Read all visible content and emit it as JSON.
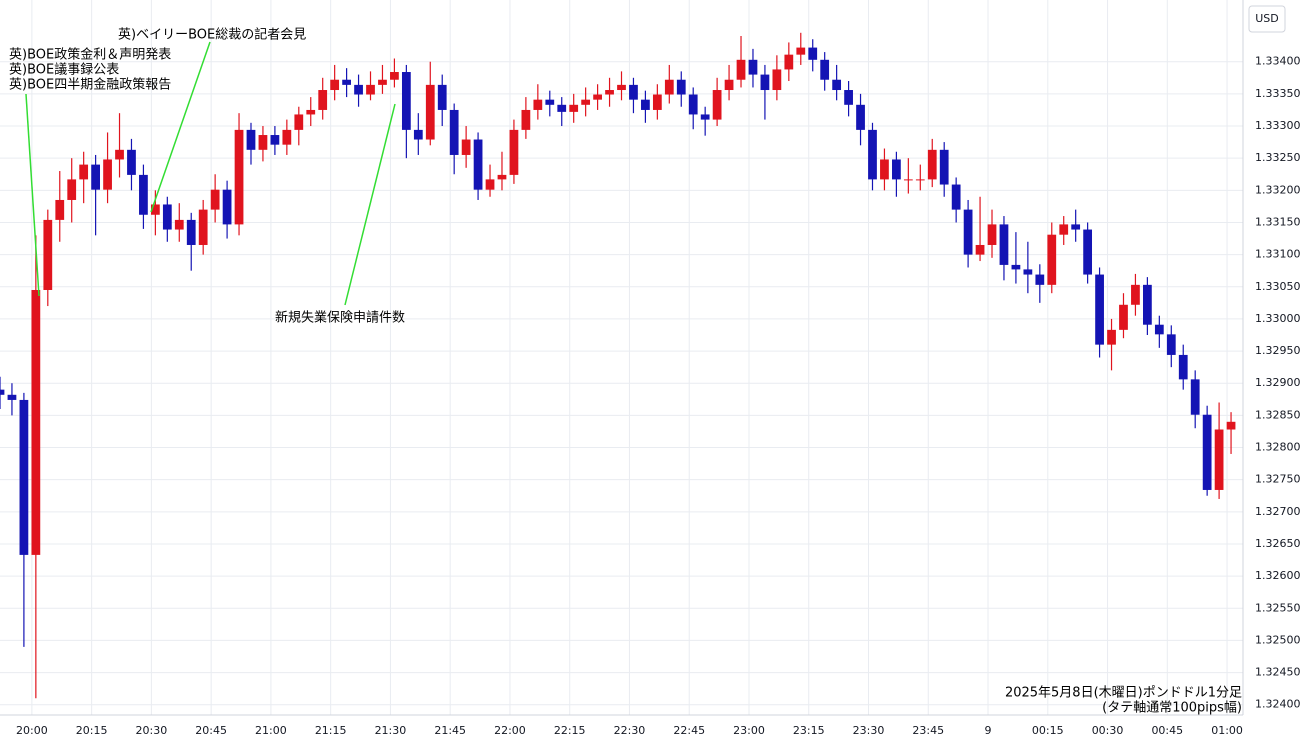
{
  "chart_data": {
    "type": "candlestick",
    "currency": "USD",
    "annotations": [
      "英)ベイリーBOE総裁の記者会見",
      "英)BOE政策金利＆声明発表",
      "英)BOE議事録公表",
      "英)BOE四半期金融政策報告",
      "新規失業保険申請件数"
    ],
    "caption": [
      "2025年5月8日(木曜日)ポンドドル1分足",
      "(タテ軸通常100pips幅)"
    ],
    "up_color": "#e0141e",
    "down_color": "#1414b4",
    "grid": true,
    "x": [
      "19:52",
      "19:55",
      "19:58",
      "20:01",
      "20:04",
      "20:07",
      "20:10",
      "20:13",
      "20:16",
      "20:19",
      "20:22",
      "20:25",
      "20:28",
      "20:31",
      "20:34",
      "20:37",
      "20:40",
      "20:43",
      "20:46",
      "20:49",
      "20:52",
      "20:55",
      "20:58",
      "21:01",
      "21:04",
      "21:07",
      "21:10",
      "21:13",
      "21:16",
      "21:19",
      "21:22",
      "21:25",
      "21:28",
      "21:31",
      "21:34",
      "21:37",
      "21:40",
      "21:43",
      "21:46",
      "21:49",
      "21:52",
      "21:55",
      "21:58",
      "22:01",
      "22:04",
      "22:07",
      "22:10",
      "22:13",
      "22:16",
      "22:19",
      "22:22",
      "22:25",
      "22:28",
      "22:31",
      "22:34",
      "22:37",
      "22:40",
      "22:43",
      "22:46",
      "22:49",
      "22:52",
      "22:55",
      "22:58",
      "23:01",
      "23:04",
      "23:07",
      "23:10",
      "23:13",
      "23:16",
      "23:19",
      "23:22",
      "23:25",
      "23:28",
      "23:31",
      "23:34",
      "23:37",
      "23:40",
      "23:43",
      "23:46",
      "23:49",
      "23:52",
      "23:55",
      "23:58",
      "00:01",
      "00:04",
      "00:07",
      "00:10",
      "00:13",
      "00:16",
      "00:19",
      "00:22",
      "00:25",
      "00:28",
      "00:31",
      "00:34",
      "00:37",
      "00:40",
      "00:43",
      "00:46",
      "00:49",
      "00:52",
      "00:55",
      "00:58",
      "01:01"
    ],
    "open": [
      1.3289,
      1.32882,
      1.32874,
      1.32633,
      1.33045,
      1.33154,
      1.33185,
      1.33217,
      1.3324,
      1.33201,
      1.33248,
      1.33263,
      1.33224,
      1.33162,
      1.33178,
      1.33139,
      1.33154,
      1.33115,
      1.3317,
      1.33201,
      1.33147,
      1.33294,
      1.33263,
      1.33286,
      1.33271,
      1.33294,
      1.33318,
      1.33325,
      1.33356,
      1.33372,
      1.33364,
      1.33349,
      1.33364,
      1.33372,
      1.33384,
      1.33294,
      1.33279,
      1.33364,
      1.33325,
      1.33255,
      1.33279,
      1.33201,
      1.33217,
      1.33224,
      1.33294,
      1.33325,
      1.33341,
      1.33333,
      1.33322,
      1.33333,
      1.33341,
      1.33349,
      1.33356,
      1.33364,
      1.33341,
      1.33325,
      1.33349,
      1.33372,
      1.33349,
      1.33318,
      1.3331,
      1.33356,
      1.33372,
      1.33403,
      1.3338,
      1.33356,
      1.33388,
      1.33411,
      1.33422,
      1.33403,
      1.33372,
      1.33356,
      1.33333,
      1.33294,
      1.33217,
      1.33248,
      1.33217,
      1.33217,
      1.33217,
      1.33263,
      1.33209,
      1.3317,
      1.331,
      1.33115,
      1.33147,
      1.33084,
      1.33077,
      1.33069,
      1.33053,
      1.33131,
      1.33147,
      1.33139,
      1.33069,
      1.3296,
      1.32983,
      1.33022,
      1.33053,
      1.32991,
      1.32976,
      1.32944,
      1.32906,
      1.32851,
      1.32734,
      1.32828
    ],
    "high": [
      1.3291,
      1.329,
      1.32885,
      1.3313,
      1.3317,
      1.3323,
      1.3325,
      1.3326,
      1.33255,
      1.3329,
      1.3332,
      1.3328,
      1.3324,
      1.332,
      1.3319,
      1.3318,
      1.33165,
      1.33185,
      1.33225,
      1.33215,
      1.3332,
      1.33305,
      1.333,
      1.333,
      1.3331,
      1.3333,
      1.33345,
      1.33375,
      1.33395,
      1.3339,
      1.3338,
      1.33385,
      1.33395,
      1.33405,
      1.33395,
      1.3332,
      1.334,
      1.3338,
      1.33335,
      1.333,
      1.3329,
      1.3324,
      1.3326,
      1.3331,
      1.33345,
      1.33365,
      1.33355,
      1.33345,
      1.3335,
      1.3336,
      1.33365,
      1.33375,
      1.33385,
      1.33375,
      1.33355,
      1.33365,
      1.33395,
      1.33385,
      1.3336,
      1.3333,
      1.33375,
      1.33395,
      1.3344,
      1.3342,
      1.33395,
      1.3341,
      1.3343,
      1.33445,
      1.33435,
      1.33415,
      1.33395,
      1.3337,
      1.3335,
      1.33305,
      1.33265,
      1.3326,
      1.3325,
      1.3324,
      1.3328,
      1.33275,
      1.3322,
      1.33185,
      1.3319,
      1.3317,
      1.3316,
      1.33135,
      1.3312,
      1.33085,
      1.3315,
      1.3316,
      1.3317,
      1.3315,
      1.3308,
      1.33,
      1.3304,
      1.3307,
      1.33065,
      1.33005,
      1.3299,
      1.3296,
      1.3292,
      1.32865,
      1.3287,
      1.32855
    ],
    "low": [
      1.3286,
      1.3285,
      1.3249,
      1.3241,
      1.3302,
      1.3312,
      1.3315,
      1.3318,
      1.3313,
      1.3318,
      1.3322,
      1.332,
      1.3314,
      1.3313,
      1.3312,
      1.3312,
      1.33075,
      1.331,
      1.3315,
      1.33125,
      1.3313,
      1.3324,
      1.33245,
      1.33255,
      1.33255,
      1.3327,
      1.333,
      1.3331,
      1.3334,
      1.33345,
      1.3333,
      1.3334,
      1.3335,
      1.3336,
      1.3325,
      1.33255,
      1.3327,
      1.333,
      1.33225,
      1.33235,
      1.33185,
      1.3319,
      1.332,
      1.3321,
      1.3328,
      1.3331,
      1.33315,
      1.333,
      1.33305,
      1.33315,
      1.33325,
      1.3333,
      1.3334,
      1.3332,
      1.33305,
      1.3331,
      1.33335,
      1.3333,
      1.33295,
      1.33285,
      1.333,
      1.3334,
      1.3336,
      1.3336,
      1.3331,
      1.3334,
      1.3337,
      1.33395,
      1.33385,
      1.33355,
      1.3334,
      1.33315,
      1.3327,
      1.332,
      1.332,
      1.3319,
      1.33195,
      1.332,
      1.33205,
      1.3319,
      1.3315,
      1.3308,
      1.3309,
      1.33095,
      1.3306,
      1.33055,
      1.3304,
      1.33025,
      1.3304,
      1.33115,
      1.3312,
      1.33055,
      1.3294,
      1.3292,
      1.3297,
      1.33005,
      1.32975,
      1.32955,
      1.32925,
      1.3289,
      1.3283,
      1.32725,
      1.3272,
      1.3279
    ],
    "close": [
      1.32882,
      1.32874,
      1.32633,
      1.33045,
      1.33154,
      1.33185,
      1.33217,
      1.3324,
      1.33201,
      1.33248,
      1.33263,
      1.33224,
      1.33162,
      1.33178,
      1.33139,
      1.33154,
      1.33115,
      1.3317,
      1.33201,
      1.33147,
      1.33294,
      1.33263,
      1.33286,
      1.33271,
      1.33294,
      1.33318,
      1.33325,
      1.33356,
      1.33372,
      1.33364,
      1.33349,
      1.33364,
      1.33372,
      1.33384,
      1.33294,
      1.33279,
      1.33364,
      1.33325,
      1.33255,
      1.33279,
      1.33201,
      1.33217,
      1.33224,
      1.33294,
      1.33325,
      1.33341,
      1.33333,
      1.33322,
      1.33333,
      1.33341,
      1.33349,
      1.33356,
      1.33364,
      1.33341,
      1.33325,
      1.33349,
      1.33372,
      1.33349,
      1.33318,
      1.3331,
      1.33356,
      1.33372,
      1.33403,
      1.3338,
      1.33356,
      1.33388,
      1.33411,
      1.33422,
      1.33403,
      1.33372,
      1.33356,
      1.33333,
      1.33294,
      1.33217,
      1.33248,
      1.33217,
      1.33217,
      1.33217,
      1.33263,
      1.33209,
      1.3317,
      1.331,
      1.33115,
      1.33147,
      1.33084,
      1.33077,
      1.33069,
      1.33053,
      1.33131,
      1.33147,
      1.33139,
      1.33069,
      1.3296,
      1.32983,
      1.33022,
      1.33053,
      1.32991,
      1.32976,
      1.32944,
      1.32906,
      1.32851,
      1.32734,
      1.32828,
      1.3284
    ],
    "xlim": [
      "19:52",
      "01:04"
    ],
    "xticks": [
      "20:00",
      "20:15",
      "20:30",
      "20:45",
      "21:00",
      "21:15",
      "21:30",
      "21:45",
      "22:00",
      "22:15",
      "22:30",
      "22:45",
      "23:00",
      "23:15",
      "23:30",
      "23:45",
      {
        "value": "00:00",
        "label": "9"
      },
      "00:15",
      "00:30",
      "00:45",
      "01:00"
    ],
    "ylim": [
      1.32384,
      1.33496
    ],
    "yticks": [
      {
        "value": 1.324,
        "label": "1.32400"
      },
      {
        "value": 1.3245,
        "label": "1.32450"
      },
      {
        "value": 1.325,
        "label": "1.32500"
      },
      {
        "value": 1.3255,
        "label": "1.32550"
      },
      {
        "value": 1.326,
        "label": "1.32600"
      },
      {
        "value": 1.3265,
        "label": "1.32650"
      },
      {
        "value": 1.327,
        "label": "1.32700"
      },
      {
        "value": 1.3275,
        "label": "1.32750"
      },
      {
        "value": 1.328,
        "label": "1.32800"
      },
      {
        "value": 1.3285,
        "label": "1.32850"
      },
      {
        "value": 1.329,
        "label": "1.32900"
      },
      {
        "value": 1.3295,
        "label": "1.32950"
      },
      {
        "value": 1.33,
        "label": "1.33000"
      },
      {
        "value": 1.3305,
        "label": "1.33050"
      },
      {
        "value": 1.331,
        "label": "1.33100"
      },
      {
        "value": 1.3315,
        "label": "1.33150"
      },
      {
        "value": 1.332,
        "label": "1.33200"
      },
      {
        "value": 1.3325,
        "label": "1.33250"
      },
      {
        "value": 1.333,
        "label": "1.33300"
      },
      {
        "value": 1.3335,
        "label": "1.33350"
      },
      {
        "value": 1.334,
        "label": "1.33400"
      }
    ]
  }
}
